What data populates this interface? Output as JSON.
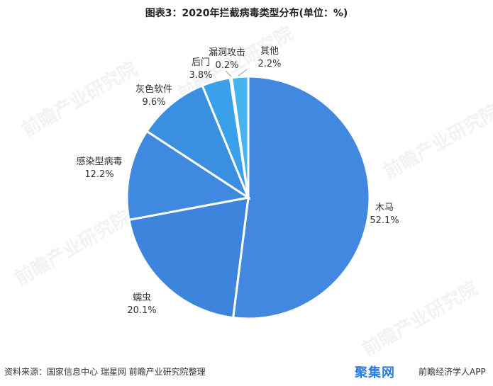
{
  "title": "图表3：2020年拦截病毒类型分布(单位：%)",
  "chart_data": {
    "type": "pie",
    "categories": [
      "木马",
      "蠕虫",
      "感染型病毒",
      "灰色软件",
      "后门",
      "漏洞攻击",
      "其他"
    ],
    "values": [
      52.1,
      20.1,
      12.2,
      9.6,
      3.8,
      0.2,
      2.2
    ],
    "value_labels": [
      "52.1%",
      "20.1%",
      "12.2%",
      "9.6%",
      "3.8%",
      "0.2%",
      "2.2%"
    ],
    "colors": [
      "#4287e0",
      "#3d85dc",
      "#3f8ae0",
      "#3a8fe0",
      "#3aa0ea",
      "#3ea8ee",
      "#47b4f2"
    ],
    "title": "图表3：2020年拦截病毒类型分布(单位：%)"
  },
  "watermark_text": "前瞻产业研究院",
  "source": "资料来源：国家信息中心 瑞星网 前瞻产业研究院整理",
  "footer": {
    "logo_text": "聚集网",
    "app_text": "前瞻经济学人APP"
  }
}
